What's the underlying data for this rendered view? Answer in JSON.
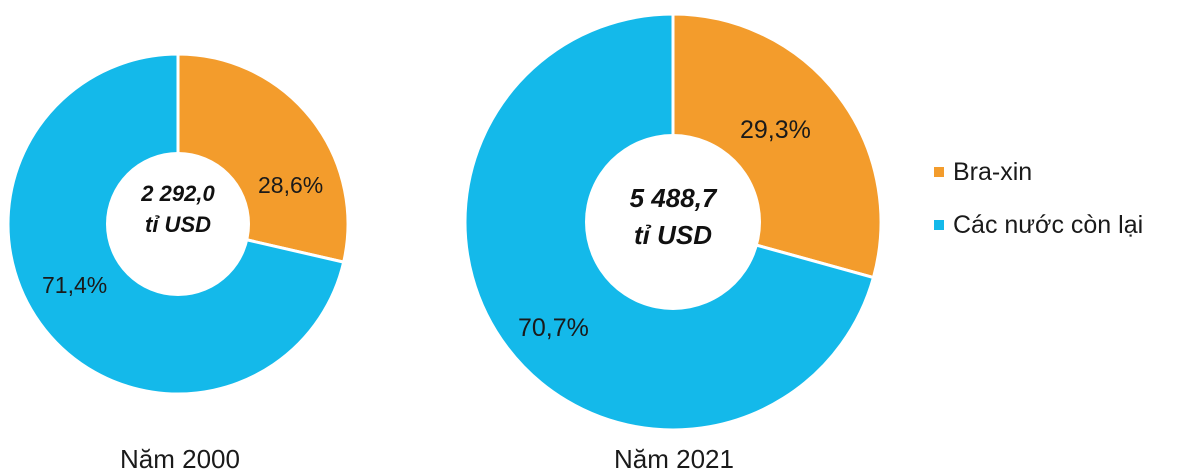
{
  "chart_data": [
    {
      "type": "pie",
      "title": "Năm 2000",
      "center_value": "2 292,0",
      "center_unit": "tỉ USD",
      "categories": [
        "Bra-xin",
        "Các nước còn lại"
      ],
      "values": [
        28.6,
        71.4
      ],
      "value_labels": [
        "28,6%",
        "71,4%"
      ]
    },
    {
      "type": "pie",
      "title": "Năm 2021",
      "center_value": "5 488,7",
      "center_unit": "tỉ USD",
      "categories": [
        "Bra-xin",
        "Các nước còn lại"
      ],
      "values": [
        29.3,
        70.7
      ],
      "value_labels": [
        "29,3%",
        "70,7%"
      ]
    }
  ],
  "legend": {
    "placement": "right",
    "items": [
      {
        "label": "Bra-xin",
        "color": "#f39c2c"
      },
      {
        "label": "Các nước còn lại",
        "color": "#14b9ea"
      }
    ]
  }
}
